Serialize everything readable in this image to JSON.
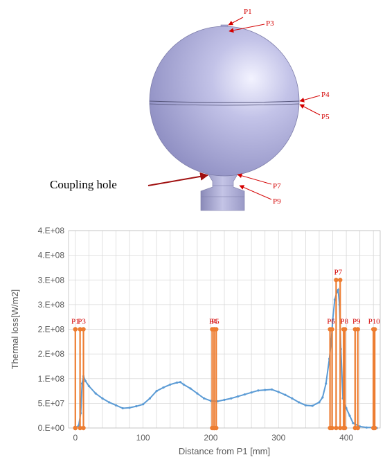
{
  "diagram": {
    "callout_labels": [
      "P1",
      "P3",
      "P4",
      "P5",
      "P7",
      "P9"
    ],
    "coupling_label": "Coupling hole"
  },
  "chart_data": {
    "type": "line",
    "xlabel": "Distance from P1 [mm]",
    "ylabel": "Thermal loss[W/m2]",
    "xlim": [
      -10,
      450
    ],
    "ylim": [
      0,
      400000000
    ],
    "x_ticks": [
      0,
      100,
      200,
      300,
      400
    ],
    "y_ticks": [
      0,
      50000000,
      100000000,
      150000000,
      200000000,
      250000000,
      300000000,
      350000000,
      400000000
    ],
    "y_tick_labels": [
      "0.E+00",
      "5.E+07",
      "1.E+08",
      "2.E+08",
      "2.E+08",
      "3.E+08",
      "3.E+08",
      "4.E+08",
      "4.E+08"
    ],
    "grid": true,
    "colors": {
      "loss": "#5b9bd5",
      "markers": "#ed7d31",
      "marker_labels": "#d40000"
    },
    "series": [
      {
        "values_x": [
          0,
          5,
          8,
          10,
          12,
          15,
          20,
          30,
          40,
          50,
          60,
          70,
          80,
          90,
          100,
          110,
          120,
          130,
          140,
          150,
          155,
          160,
          170,
          180,
          190,
          200,
          210,
          220,
          230,
          240,
          250,
          260,
          270,
          280,
          290,
          300,
          310,
          320,
          330,
          340,
          350,
          360,
          365,
          370,
          375,
          378,
          380,
          383,
          386,
          388,
          390,
          392,
          395,
          400,
          405,
          410,
          420,
          430,
          440,
          445
        ],
        "values_y": [
          0,
          5000000,
          30000000,
          90000000,
          105000000,
          95000000,
          85000000,
          70000000,
          60000000,
          52000000,
          46000000,
          40000000,
          41000000,
          44000000,
          48000000,
          60000000,
          75000000,
          82000000,
          88000000,
          92000000,
          93000000,
          88000000,
          80000000,
          70000000,
          60000000,
          55000000,
          54000000,
          57000000,
          60000000,
          64000000,
          68000000,
          72000000,
          76000000,
          77000000,
          78000000,
          73000000,
          67000000,
          60000000,
          52000000,
          46000000,
          45000000,
          52000000,
          62000000,
          90000000,
          140000000,
          180000000,
          220000000,
          260000000,
          275000000,
          280000000,
          250000000,
          160000000,
          60000000,
          40000000,
          25000000,
          10000000,
          3000000,
          1000000,
          1000000,
          0
        ]
      }
    ],
    "markers": [
      {
        "label": "P1",
        "x": 0,
        "y_top": 200000000,
        "x_left": 0,
        "x_right": 0
      },
      {
        "label": "P3",
        "x": 10,
        "y_top": 200000000,
        "x_left": 7,
        "x_right": 12
      },
      {
        "label": "P4",
        "x": 203,
        "y_top": 200000000,
        "x_left": 202,
        "x_right": 205
      },
      {
        "label": "P5",
        "x": 207,
        "y_top": 200000000,
        "x_left": 205,
        "x_right": 208
      },
      {
        "label": "P6",
        "x": 378,
        "y_top": 200000000,
        "x_left": 376,
        "x_right": 379
      },
      {
        "label": "P7",
        "x": 388,
        "y_top": 300000000,
        "x_left": 385,
        "x_right": 391
      },
      {
        "label": "P8",
        "x": 397,
        "y_top": 200000000,
        "x_left": 396,
        "x_right": 398
      },
      {
        "label": "P9",
        "x": 415,
        "y_top": 200000000,
        "x_left": 413,
        "x_right": 417
      },
      {
        "label": "P10",
        "x": 441,
        "y_top": 200000000,
        "x_left": 440,
        "x_right": 442
      }
    ]
  }
}
